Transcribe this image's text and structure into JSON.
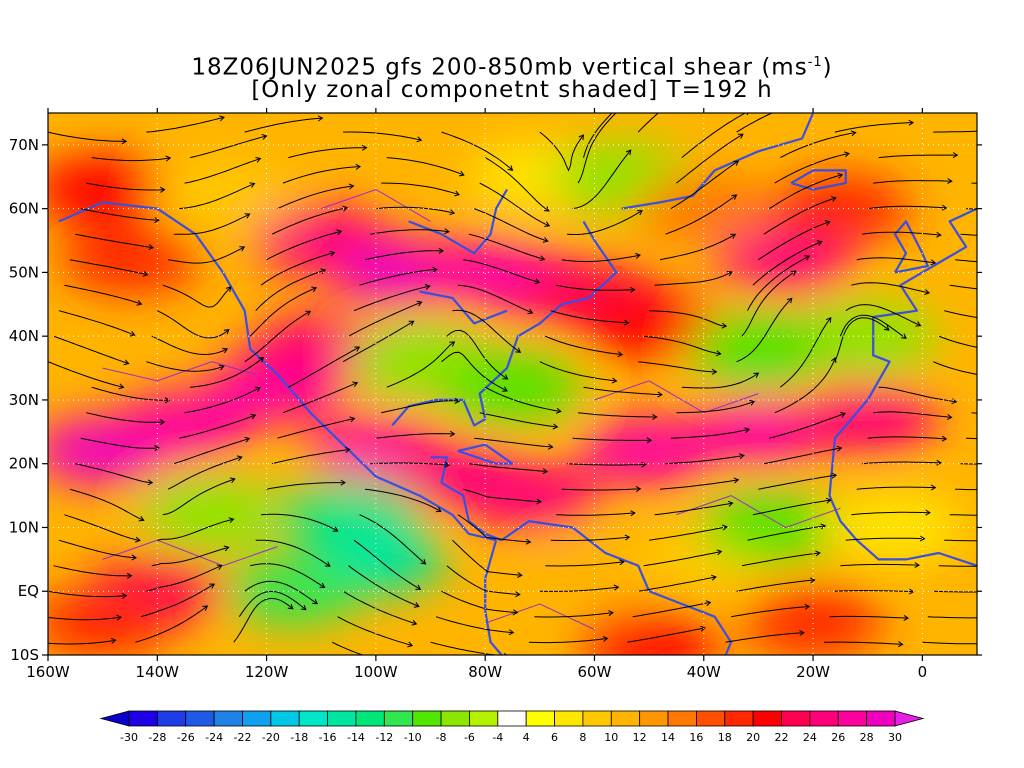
{
  "title": {
    "line1_prefix": "18Z06JUN2025 gfs 200-850mb vertical shear (ms",
    "line1_sup": "-1",
    "line1_suffix": ")",
    "line2": "[Only zonal componetnt shaded] T=192 h"
  },
  "map": {
    "lon_range": [
      -160,
      10
    ],
    "lat_range": [
      -10,
      75
    ],
    "lon_ticks": [
      {
        "value": -160,
        "label": "160W"
      },
      {
        "value": -140,
        "label": "140W"
      },
      {
        "value": -120,
        "label": "120W"
      },
      {
        "value": -100,
        "label": "100W"
      },
      {
        "value": -80,
        "label": "80W"
      },
      {
        "value": -60,
        "label": "60W"
      },
      {
        "value": -40,
        "label": "40W"
      },
      {
        "value": -20,
        "label": "20W"
      },
      {
        "value": 0,
        "label": "0"
      }
    ],
    "lat_ticks": [
      {
        "value": -10,
        "label": "10S"
      },
      {
        "value": 0,
        "label": "EQ"
      },
      {
        "value": 10,
        "label": "10N"
      },
      {
        "value": 20,
        "label": "20N"
      },
      {
        "value": 30,
        "label": "30N"
      },
      {
        "value": 40,
        "label": "40N"
      },
      {
        "value": 50,
        "label": "50N"
      },
      {
        "value": 60,
        "label": "60N"
      },
      {
        "value": 70,
        "label": "70N"
      }
    ],
    "gridlines": "dotted",
    "coastline_color": "#3a4fe0",
    "contour_color": "#9a2fc0",
    "streamline_color": "#000000"
  },
  "colorbar": {
    "labels": [
      "-30",
      "-28",
      "-26",
      "-24",
      "-22",
      "-20",
      "-18",
      "-16",
      "-14",
      "-12",
      "-10",
      "-8",
      "-6",
      "-4",
      "4",
      "6",
      "8",
      "10",
      "12",
      "14",
      "16",
      "18",
      "20",
      "22",
      "24",
      "26",
      "28",
      "30"
    ],
    "colors": [
      "#1e00e6",
      "#1e3ce6",
      "#1e5ae6",
      "#1e82e6",
      "#0fa0f0",
      "#00c8e6",
      "#00e6c8",
      "#00e6a0",
      "#00e678",
      "#32e650",
      "#50e600",
      "#8ce600",
      "#b4f000",
      "#ffffff",
      "#ffff00",
      "#ffe600",
      "#ffc800",
      "#ffb400",
      "#ff9600",
      "#ff7800",
      "#ff5000",
      "#ff2800",
      "#ff0000",
      "#ff0050",
      "#ff0078",
      "#ff00a0",
      "#f000be"
    ],
    "under_color": "#0a00c8",
    "over_color": "#e61ee6"
  },
  "shear_regions": [
    {
      "lon": -150,
      "lat": 63,
      "u": 20
    },
    {
      "lon": -145,
      "lat": 52,
      "u": 18
    },
    {
      "lon": -128,
      "lat": 62,
      "u": 8
    },
    {
      "lon": -110,
      "lat": 55,
      "u": 25
    },
    {
      "lon": -95,
      "lat": 50,
      "u": 28
    },
    {
      "lon": -80,
      "lat": 50,
      "u": 27
    },
    {
      "lon": -70,
      "lat": 48,
      "u": 26
    },
    {
      "lon": -60,
      "lat": 46,
      "u": 22
    },
    {
      "lon": -50,
      "lat": 42,
      "u": 20
    },
    {
      "lon": -70,
      "lat": 65,
      "u": 6
    },
    {
      "lon": -55,
      "lat": 65,
      "u": -8
    },
    {
      "lon": -40,
      "lat": 60,
      "u": 14
    },
    {
      "lon": -25,
      "lat": 52,
      "u": 24
    },
    {
      "lon": -15,
      "lat": 60,
      "u": 18
    },
    {
      "lon": -10,
      "lat": 40,
      "u": -8
    },
    {
      "lon": -30,
      "lat": 38,
      "u": -10
    },
    {
      "lon": -150,
      "lat": 22,
      "u": 28
    },
    {
      "lon": -135,
      "lat": 26,
      "u": 27
    },
    {
      "lon": -118,
      "lat": 32,
      "u": 26
    },
    {
      "lon": -110,
      "lat": 38,
      "u": 24
    },
    {
      "lon": -100,
      "lat": 22,
      "u": 26
    },
    {
      "lon": -85,
      "lat": 18,
      "u": 25
    },
    {
      "lon": -72,
      "lat": 15,
      "u": 24
    },
    {
      "lon": -50,
      "lat": 22,
      "u": 26
    },
    {
      "lon": -30,
      "lat": 25,
      "u": 27
    },
    {
      "lon": -10,
      "lat": 27,
      "u": 24
    },
    {
      "lon": -92,
      "lat": 36,
      "u": -8
    },
    {
      "lon": -75,
      "lat": 32,
      "u": -10
    },
    {
      "lon": -105,
      "lat": 12,
      "u": -14
    },
    {
      "lon": -100,
      "lat": 5,
      "u": -16
    },
    {
      "lon": -115,
      "lat": 0,
      "u": -12
    },
    {
      "lon": -130,
      "lat": 12,
      "u": -8
    },
    {
      "lon": -140,
      "lat": 0,
      "u": 22
    },
    {
      "lon": -150,
      "lat": -5,
      "u": 18
    },
    {
      "lon": -60,
      "lat": 2,
      "u": 10
    },
    {
      "lon": -40,
      "lat": 5,
      "u": 8
    },
    {
      "lon": -28,
      "lat": 10,
      "u": -9
    },
    {
      "lon": -5,
      "lat": 10,
      "u": 6
    },
    {
      "lon": -20,
      "lat": -5,
      "u": 18
    },
    {
      "lon": -50,
      "lat": -8,
      "u": 20
    }
  ]
}
